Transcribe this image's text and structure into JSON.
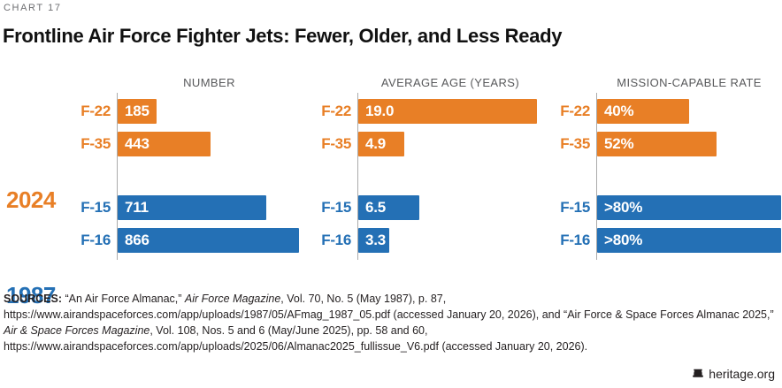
{
  "meta": {
    "chart_label": "CHART 17",
    "title": "Frontline Air Force Fighter Jets: Fewer, Older, and Less Ready"
  },
  "colors": {
    "orange_2024": "#E87F26",
    "blue_1987": "#2470B5",
    "axis": "#ABABAB",
    "panel_title_gray": "#58595B",
    "text": "#231F20"
  },
  "chart_data": [
    {
      "type": "bar",
      "orientation": "horizontal",
      "title": "NUMBER",
      "xmax": 880,
      "groups": [
        {
          "year": "2024",
          "color": "#E87F26",
          "bars": [
            {
              "category": "F-22",
              "value": 185,
              "label": "185"
            },
            {
              "category": "F-35",
              "value": 443,
              "label": "443"
            }
          ]
        },
        {
          "year": "1987",
          "color": "#2470B5",
          "bars": [
            {
              "category": "F-15",
              "value": 711,
              "label": "711"
            },
            {
              "category": "F-16",
              "value": 866,
              "label": "866"
            }
          ]
        }
      ]
    },
    {
      "type": "bar",
      "orientation": "horizontal",
      "title": "AVERAGE AGE (YEARS)",
      "xmax": 19.7,
      "groups": [
        {
          "year": "2024",
          "color": "#E87F26",
          "bars": [
            {
              "category": "F-22",
              "value": 19.0,
              "label": "19.0"
            },
            {
              "category": "F-35",
              "value": 4.9,
              "label": "4.9"
            }
          ]
        },
        {
          "year": "1987",
          "color": "#2470B5",
          "bars": [
            {
              "category": "F-15",
              "value": 6.5,
              "label": "6.5"
            },
            {
              "category": "F-16",
              "value": 3.3,
              "label": "3.3"
            }
          ]
        }
      ]
    },
    {
      "type": "bar",
      "orientation": "horizontal",
      "title": "MISSION-CAPABLE RATE",
      "xmax": 80.5,
      "groups": [
        {
          "year": "2024",
          "color": "#E87F26",
          "bars": [
            {
              "category": "F-22",
              "value": 40,
              "label": "40%"
            },
            {
              "category": "F-35",
              "value": 52,
              "label": "52%"
            }
          ]
        },
        {
          "year": "1987",
          "color": "#2470B5",
          "bars": [
            {
              "category": "F-15",
              "value": 80,
              "label": ">80%"
            },
            {
              "category": "F-16",
              "value": 80,
              "label": ">80%"
            }
          ]
        }
      ]
    }
  ],
  "sources": {
    "label": "SOURCES:",
    "segments": [
      {
        "text": " “An Air Force Almanac,” ",
        "style": "normal"
      },
      {
        "text": "Air Force Magazine",
        "style": "italic"
      },
      {
        "text": ", Vol. 70, No. 5 (May 1987), p. 87, https://www.airandspaceforces.com/app/uploads/1987/05/AFmag_1987_05.pdf (accessed January 20, 2026), and “Air Force & Space Forces Almanac 2025,” ",
        "style": "normal"
      },
      {
        "text": "Air & Space Forces Magazine",
        "style": "italic"
      },
      {
        "text": ", Vol. 108, Nos. 5 and 6 (May/June 2025), pp. 58 and 60, https://www.airandspaceforces.com/app/uploads/2025/06/Almanac2025_fullissue_V6.pdf (accessed January 20, 2026).",
        "style": "normal"
      }
    ]
  },
  "footer": {
    "brand": "heritage.org",
    "icon": "liberty-bell-icon"
  }
}
